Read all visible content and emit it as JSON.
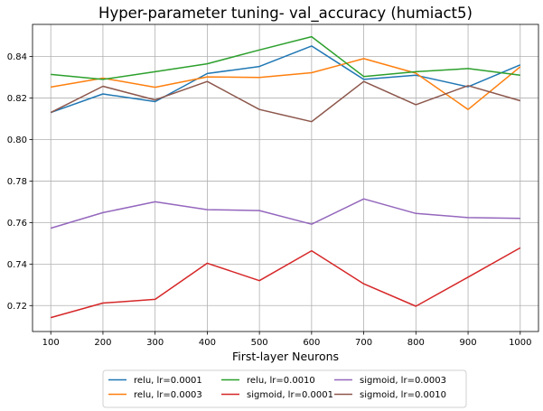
{
  "chart_data": {
    "type": "line",
    "title": "Hyper-parameter tuning- val_accuracy (humiact5)",
    "xlabel": "First-layer Neurons",
    "ylabel": "",
    "x": [
      100,
      200,
      300,
      400,
      500,
      600,
      700,
      800,
      900,
      1000
    ],
    "xticks": [
      "100",
      "200",
      "300",
      "400",
      "500",
      "600",
      "700",
      "800",
      "900",
      "1000"
    ],
    "yticks": [
      "0.72",
      "0.74",
      "0.76",
      "0.78",
      "0.80",
      "0.82",
      "0.84"
    ],
    "xlim": [
      65,
      1035
    ],
    "ylim": [
      0.7075,
      0.8555
    ],
    "grid": true,
    "legend_position": "below",
    "series": [
      {
        "name": "relu, lr=0.0001",
        "color": "#1f77b4",
        "values": [
          0.813,
          0.822,
          0.8183,
          0.8318,
          0.8352,
          0.8451,
          0.829,
          0.831,
          0.8254,
          0.836
        ]
      },
      {
        "name": "relu, lr=0.0003",
        "color": "#ff7f0e",
        "values": [
          0.8253,
          0.8296,
          0.8252,
          0.8302,
          0.8299,
          0.8322,
          0.839,
          0.832,
          0.8145,
          0.8351
        ]
      },
      {
        "name": "relu, lr=0.0010",
        "color": "#2ca02c",
        "values": [
          0.8314,
          0.829,
          0.8327,
          0.8365,
          0.8432,
          0.8496,
          0.8304,
          0.8327,
          0.8342,
          0.831
        ]
      },
      {
        "name": "sigmoid, lr=0.0001",
        "color": "#d62728",
        "values": [
          0.7142,
          0.7212,
          0.723,
          0.7404,
          0.732,
          0.7464,
          0.7305,
          0.7197,
          0.7337,
          0.7478
        ]
      },
      {
        "name": "sigmoid, lr=0.0003",
        "color": "#9467bd",
        "values": [
          0.7573,
          0.7648,
          0.77,
          0.7662,
          0.7658,
          0.7592,
          0.7714,
          0.7644,
          0.7624,
          0.762
        ]
      },
      {
        "name": "sigmoid, lr=0.0010",
        "color": "#8c564b",
        "values": [
          0.813,
          0.8257,
          0.8191,
          0.828,
          0.8145,
          0.8086,
          0.828,
          0.8168,
          0.826,
          0.8187
        ]
      }
    ]
  }
}
